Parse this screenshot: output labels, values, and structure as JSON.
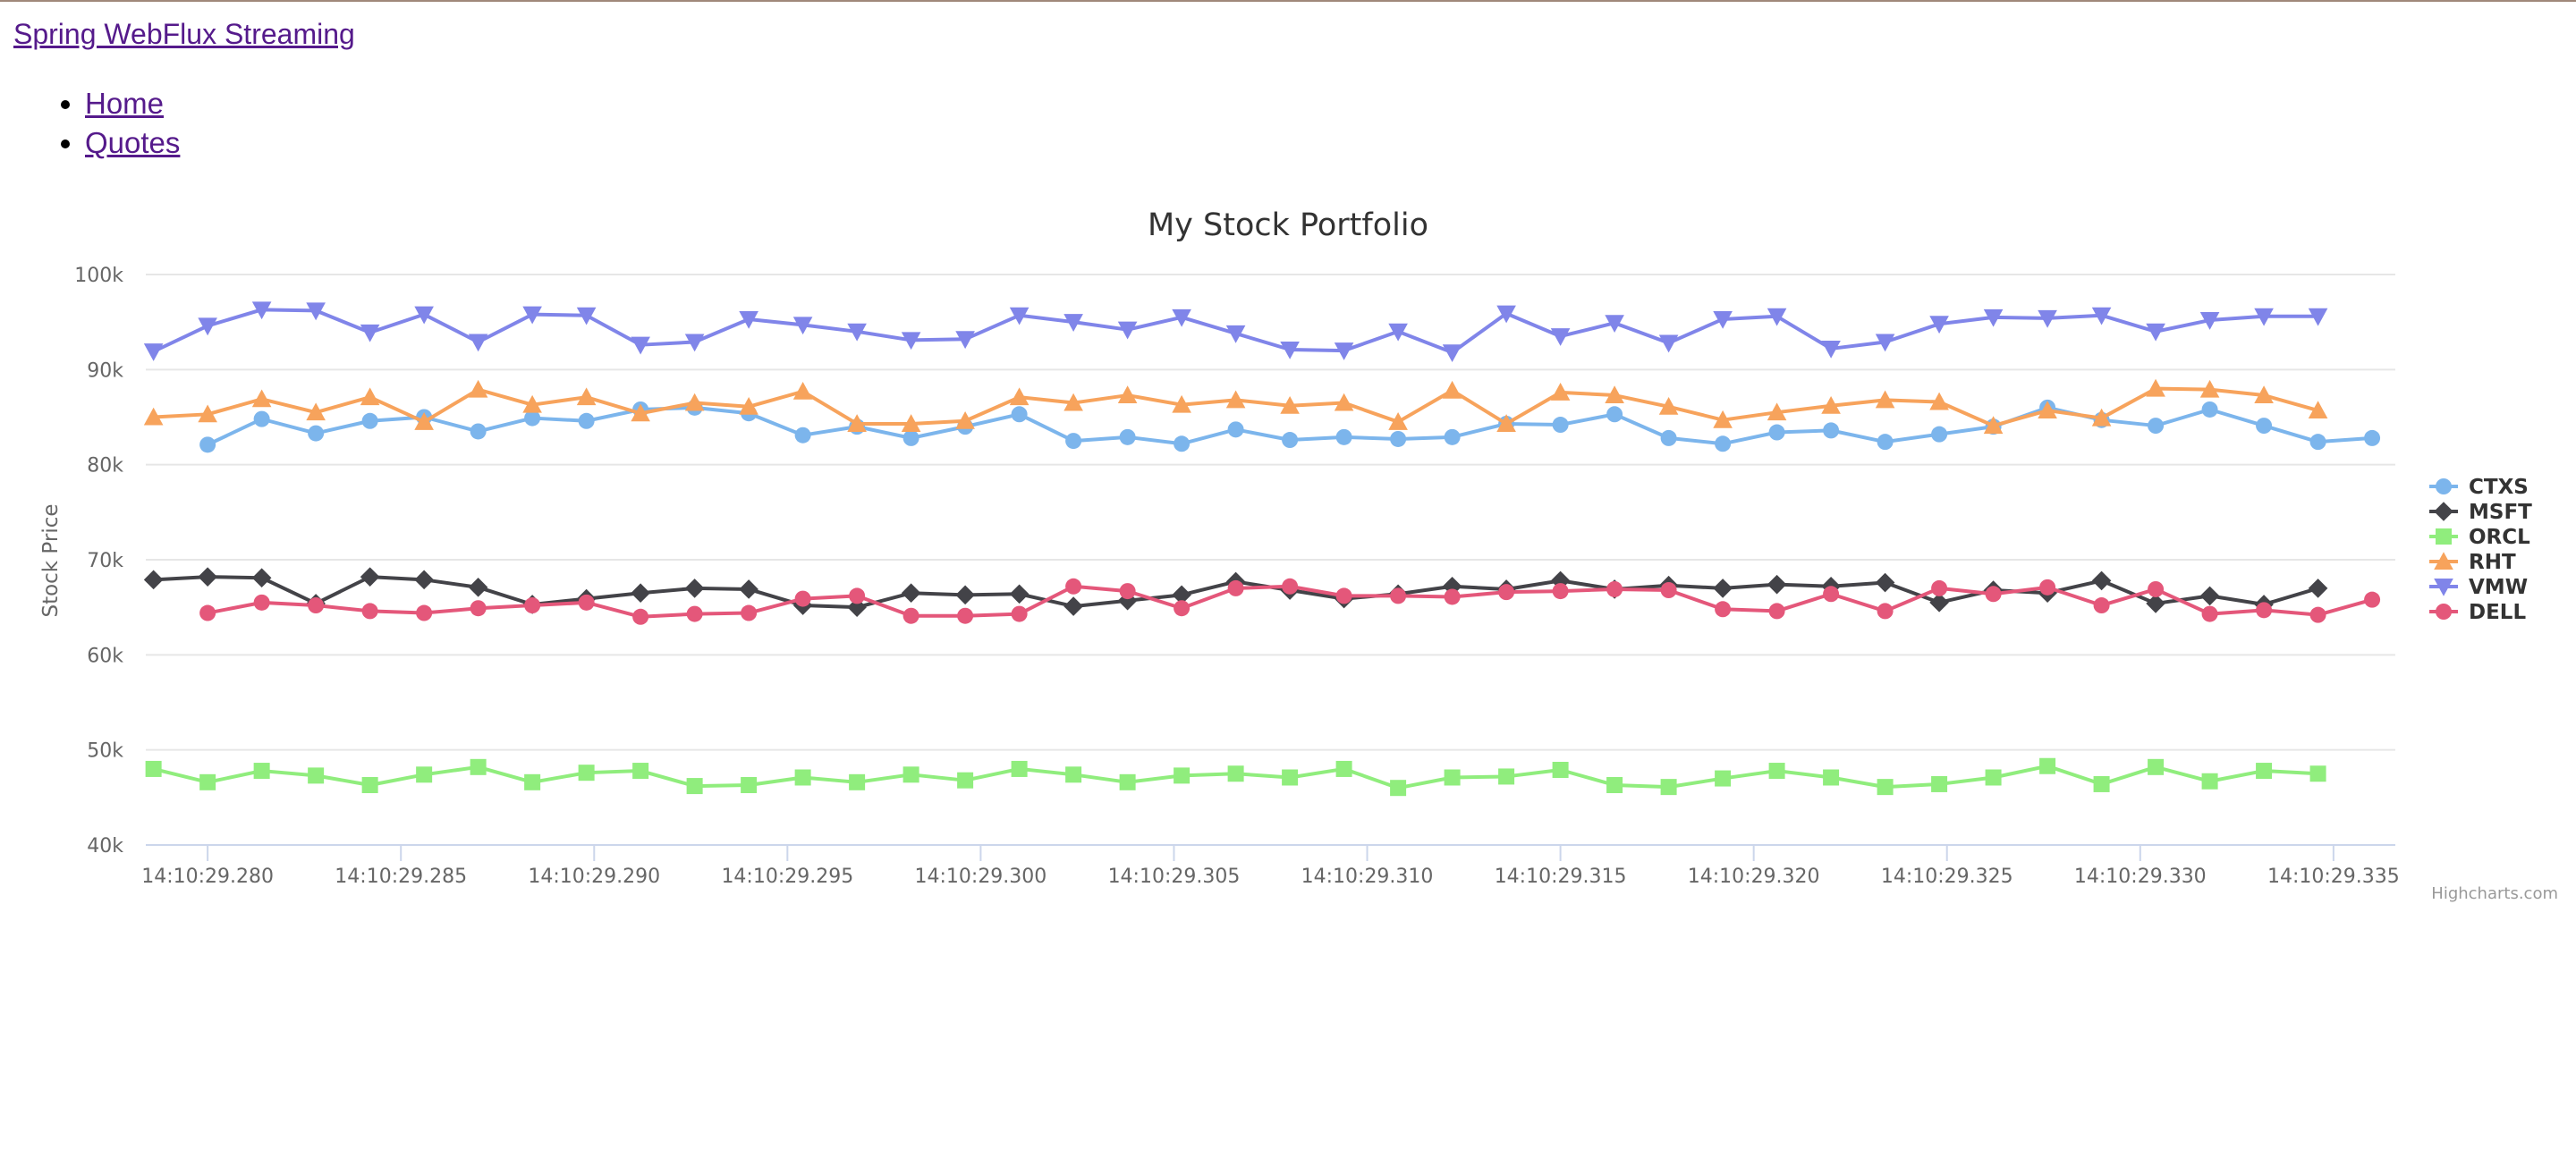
{
  "header": {
    "brand": "Spring WebFlux Streaming"
  },
  "nav": {
    "items": [
      {
        "label": "Home"
      },
      {
        "label": "Quotes"
      }
    ]
  },
  "credits": "Highcharts.com",
  "chart_data": {
    "type": "line",
    "title": "My Stock Portfolio",
    "ylabel": "Stock Price",
    "xlabel": "",
    "ylim": [
      40000,
      100000
    ],
    "y_ticks": [
      {
        "value": 40000,
        "label": "40k"
      },
      {
        "value": 50000,
        "label": "50k"
      },
      {
        "value": 60000,
        "label": "60k"
      },
      {
        "value": 70000,
        "label": "70k"
      },
      {
        "value": 80000,
        "label": "80k"
      },
      {
        "value": 90000,
        "label": "90k"
      },
      {
        "value": 100000,
        "label": "100k"
      }
    ],
    "x_ticks": [
      {
        "value": 280,
        "label": "14:10:29.280"
      },
      {
        "value": 285,
        "label": "14:10:29.285"
      },
      {
        "value": 290,
        "label": "14:10:29.290"
      },
      {
        "value": 295,
        "label": "14:10:29.295"
      },
      {
        "value": 300,
        "label": "14:10:29.300"
      },
      {
        "value": 305,
        "label": "14:10:29.305"
      },
      {
        "value": 310,
        "label": "14:10:29.310"
      },
      {
        "value": 315,
        "label": "14:10:29.315"
      },
      {
        "value": 320,
        "label": "14:10:29.320"
      },
      {
        "value": 325,
        "label": "14:10:29.325"
      },
      {
        "value": 330,
        "label": "14:10:29.330"
      },
      {
        "value": 335,
        "label": "14:10:29.335"
      }
    ],
    "xlim": [
      278.4,
      336.6
    ],
    "grid": true,
    "legend": "right",
    "series": [
      {
        "name": "CTXS",
        "color": "#7cb5ec",
        "marker": "circle",
        "x_start": 280.0,
        "values": [
          82100,
          84800,
          83300,
          84600,
          85000,
          83500,
          84900,
          84600,
          85800,
          86000,
          85400,
          83100,
          84000,
          82800,
          84000,
          85300,
          82500,
          82900,
          82200,
          83700,
          82600,
          82900,
          82700,
          82900,
          84300,
          84200,
          85300,
          82800,
          82200,
          83400,
          83600,
          82400,
          83200,
          84000,
          86000,
          84700,
          84100,
          85800,
          84100,
          82400,
          82800
        ]
      },
      {
        "name": "MSFT",
        "color": "#434348",
        "marker": "diamond",
        "x_start": 278.6,
        "values": [
          67900,
          68200,
          68100,
          65400,
          68200,
          67900,
          67100,
          65300,
          65900,
          66500,
          67000,
          66900,
          65200,
          65000,
          66500,
          66300,
          66400,
          65100,
          65700,
          66300,
          67700,
          66800,
          65900,
          66400,
          67200,
          66900,
          67800,
          66900,
          67300,
          67000,
          67400,
          67200,
          67600,
          65500,
          66800,
          66500,
          67800,
          65400,
          66200,
          65300,
          67000
        ]
      },
      {
        "name": "ORCL",
        "color": "#90ed7d",
        "marker": "square",
        "x_start": 278.6,
        "values": [
          48000,
          46600,
          47800,
          47300,
          46300,
          47400,
          48200,
          46600,
          47600,
          47800,
          46200,
          46300,
          47100,
          46600,
          47400,
          46800,
          48000,
          47400,
          46600,
          47300,
          47500,
          47100,
          48000,
          46000,
          47100,
          47200,
          47900,
          46300,
          46100,
          47000,
          47800,
          47100,
          46100,
          46400,
          47100,
          48300,
          46400,
          48200,
          46700,
          47800,
          47500
        ]
      },
      {
        "name": "RHT",
        "color": "#f7a35c",
        "marker": "triangle",
        "x_start": 278.6,
        "values": [
          85000,
          85300,
          86900,
          85500,
          87100,
          84500,
          87900,
          86300,
          87100,
          85400,
          86500,
          86100,
          87700,
          84300,
          84300,
          84600,
          87100,
          86500,
          87300,
          86300,
          86800,
          86200,
          86500,
          84500,
          87800,
          84300,
          87600,
          87300,
          86100,
          84700,
          85500,
          86200,
          86800,
          86600,
          84100,
          85700,
          84900,
          88000,
          87900,
          87300,
          85700
        ]
      },
      {
        "name": "VMW",
        "color": "#8085e9",
        "marker": "triangle-down",
        "x_start": 278.6,
        "values": [
          91900,
          94600,
          96300,
          96200,
          93900,
          95800,
          92900,
          95800,
          95700,
          92600,
          92900,
          95300,
          94700,
          94000,
          93100,
          93200,
          95700,
          95000,
          94200,
          95500,
          93800,
          92100,
          92000,
          94000,
          91800,
          95900,
          93500,
          94900,
          92800,
          95300,
          95600,
          92200,
          92900,
          94800,
          95500,
          95400,
          95700,
          94000,
          95200,
          95600,
          95600
        ]
      },
      {
        "name": "DELL",
        "color": "#e4577a",
        "marker": "circle",
        "x_start": 280.0,
        "values": [
          64400,
          65500,
          65200,
          64600,
          64400,
          64900,
          65200,
          65500,
          64000,
          64300,
          64400,
          65900,
          66200,
          64100,
          64100,
          64300,
          67200,
          66700,
          64900,
          67000,
          67200,
          66200,
          66200,
          66100,
          66600,
          66700,
          66900,
          66800,
          64800,
          64600,
          66400,
          64600,
          67000,
          66400,
          67100,
          65200,
          66900,
          64300,
          64700,
          64200,
          65800
        ]
      }
    ]
  }
}
